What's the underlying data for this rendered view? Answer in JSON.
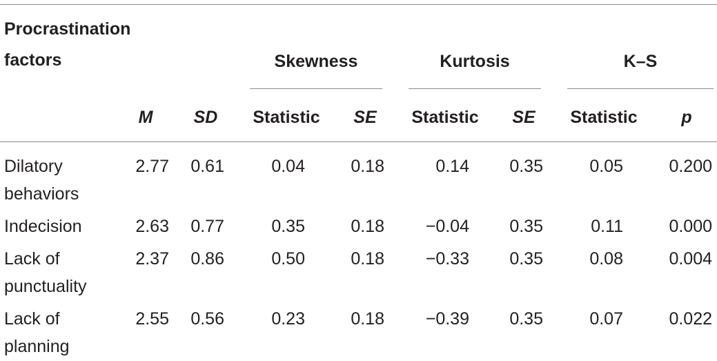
{
  "header": {
    "row_label": "Procrastination factors",
    "groups": {
      "skewness": "Skewness",
      "kurtosis": "Kurtosis",
      "ks": "K–S"
    },
    "columns": {
      "m": "M",
      "sd": "SD",
      "skew_stat": "Statistic",
      "skew_se": "SE",
      "kurt_stat": "Statistic",
      "kurt_se": "SE",
      "ks_stat": "Statistic",
      "ks_p": "p"
    }
  },
  "rows": [
    {
      "label": "Dilatory behaviors",
      "m": "2.77",
      "sd": "0.61",
      "skew_stat": "0.04",
      "skew_se": "0.18",
      "kurt_stat": "0.14",
      "kurt_se": "0.35",
      "ks_stat": "0.05",
      "ks_p": "0.200"
    },
    {
      "label": "Indecision",
      "m": "2.63",
      "sd": "0.77",
      "skew_stat": "0.35",
      "skew_se": "0.18",
      "kurt_stat": "−0.04",
      "kurt_se": "0.35",
      "ks_stat": "0.11",
      "ks_p": "0.000"
    },
    {
      "label": "Lack of punctuality",
      "m": "2.37",
      "sd": "0.86",
      "skew_stat": "0.50",
      "skew_se": "0.18",
      "kurt_stat": "−0.33",
      "kurt_se": "0.35",
      "ks_stat": "0.08",
      "ks_p": "0.004"
    },
    {
      "label": "Lack of planning",
      "m": "2.55",
      "sd": "0.56",
      "skew_stat": "0.23",
      "skew_se": "0.18",
      "kurt_stat": "−0.39",
      "kurt_se": "0.35",
      "ks_stat": "0.07",
      "ks_p": "0.022"
    }
  ]
}
